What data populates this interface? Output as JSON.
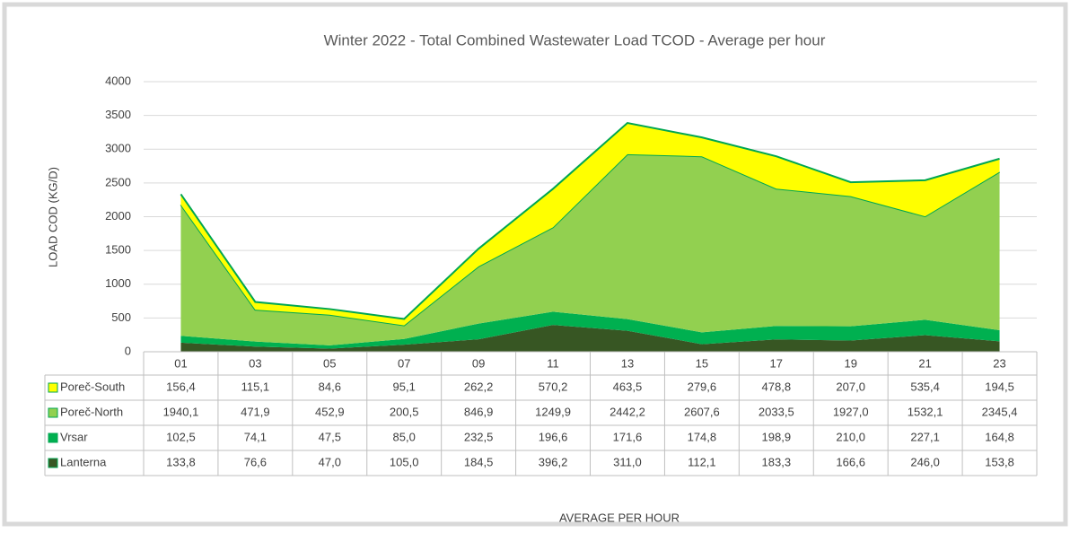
{
  "chart_data": {
    "type": "stacked_area",
    "title": "Winter 2022 - Total Combined Wastewater Load TCOD - Average per hour",
    "y_label": "LOAD COD (KG/D)",
    "x_label": "AVERAGE PER HOUR",
    "categories": [
      "01",
      "03",
      "05",
      "07",
      "09",
      "11",
      "13",
      "15",
      "17",
      "19",
      "21",
      "23"
    ],
    "ylim": [
      0,
      4000
    ],
    "yticks": [
      0,
      500,
      1000,
      1500,
      2000,
      2500,
      3000,
      3500,
      4000
    ],
    "grid": true,
    "series": [
      {
        "name": "Poreč-South",
        "color": "#ffff00",
        "values": [
          156.4,
          115.1,
          84.6,
          95.1,
          262.2,
          570.2,
          463.5,
          279.6,
          478.8,
          207.0,
          535.4,
          194.5
        ],
        "value_labels": [
          "156,4",
          "115,1",
          "84,6",
          "95,1",
          "262,2",
          "570,2",
          "463,5",
          "279,6",
          "478,8",
          "207,0",
          "535,4",
          "194,5"
        ]
      },
      {
        "name": "Poreč-North",
        "color": "#92d050",
        "values": [
          1940.1,
          471.9,
          452.9,
          200.5,
          846.9,
          1249.9,
          2442.2,
          2607.6,
          2033.5,
          1927.0,
          1532.1,
          2345.4
        ],
        "value_labels": [
          "1940,1",
          "471,9",
          "452,9",
          "200,5",
          "846,9",
          "1249,9",
          "2442,2",
          "2607,6",
          "2033,5",
          "1927,0",
          "1532,1",
          "2345,4"
        ]
      },
      {
        "name": "Vrsar",
        "color": "#00b050",
        "values": [
          102.5,
          74.1,
          47.5,
          85.0,
          232.5,
          196.6,
          171.6,
          174.8,
          198.9,
          210.0,
          227.1,
          164.8
        ],
        "value_labels": [
          "102,5",
          "74,1",
          "47,5",
          "85,0",
          "232,5",
          "196,6",
          "171,6",
          "174,8",
          "198,9",
          "210,0",
          "227,1",
          "164,8"
        ]
      },
      {
        "name": "Lanterna",
        "color": "#375623",
        "values": [
          133.8,
          76.6,
          47.0,
          105.0,
          184.5,
          396.2,
          311.0,
          112.1,
          183.3,
          166.6,
          246.0,
          153.8
        ],
        "value_labels": [
          "133,8",
          "76,6",
          "47,0",
          "105,0",
          "184,5",
          "396,2",
          "311,0",
          "112,1",
          "183,3",
          "166,6",
          "246,0",
          "153,8"
        ]
      }
    ]
  }
}
